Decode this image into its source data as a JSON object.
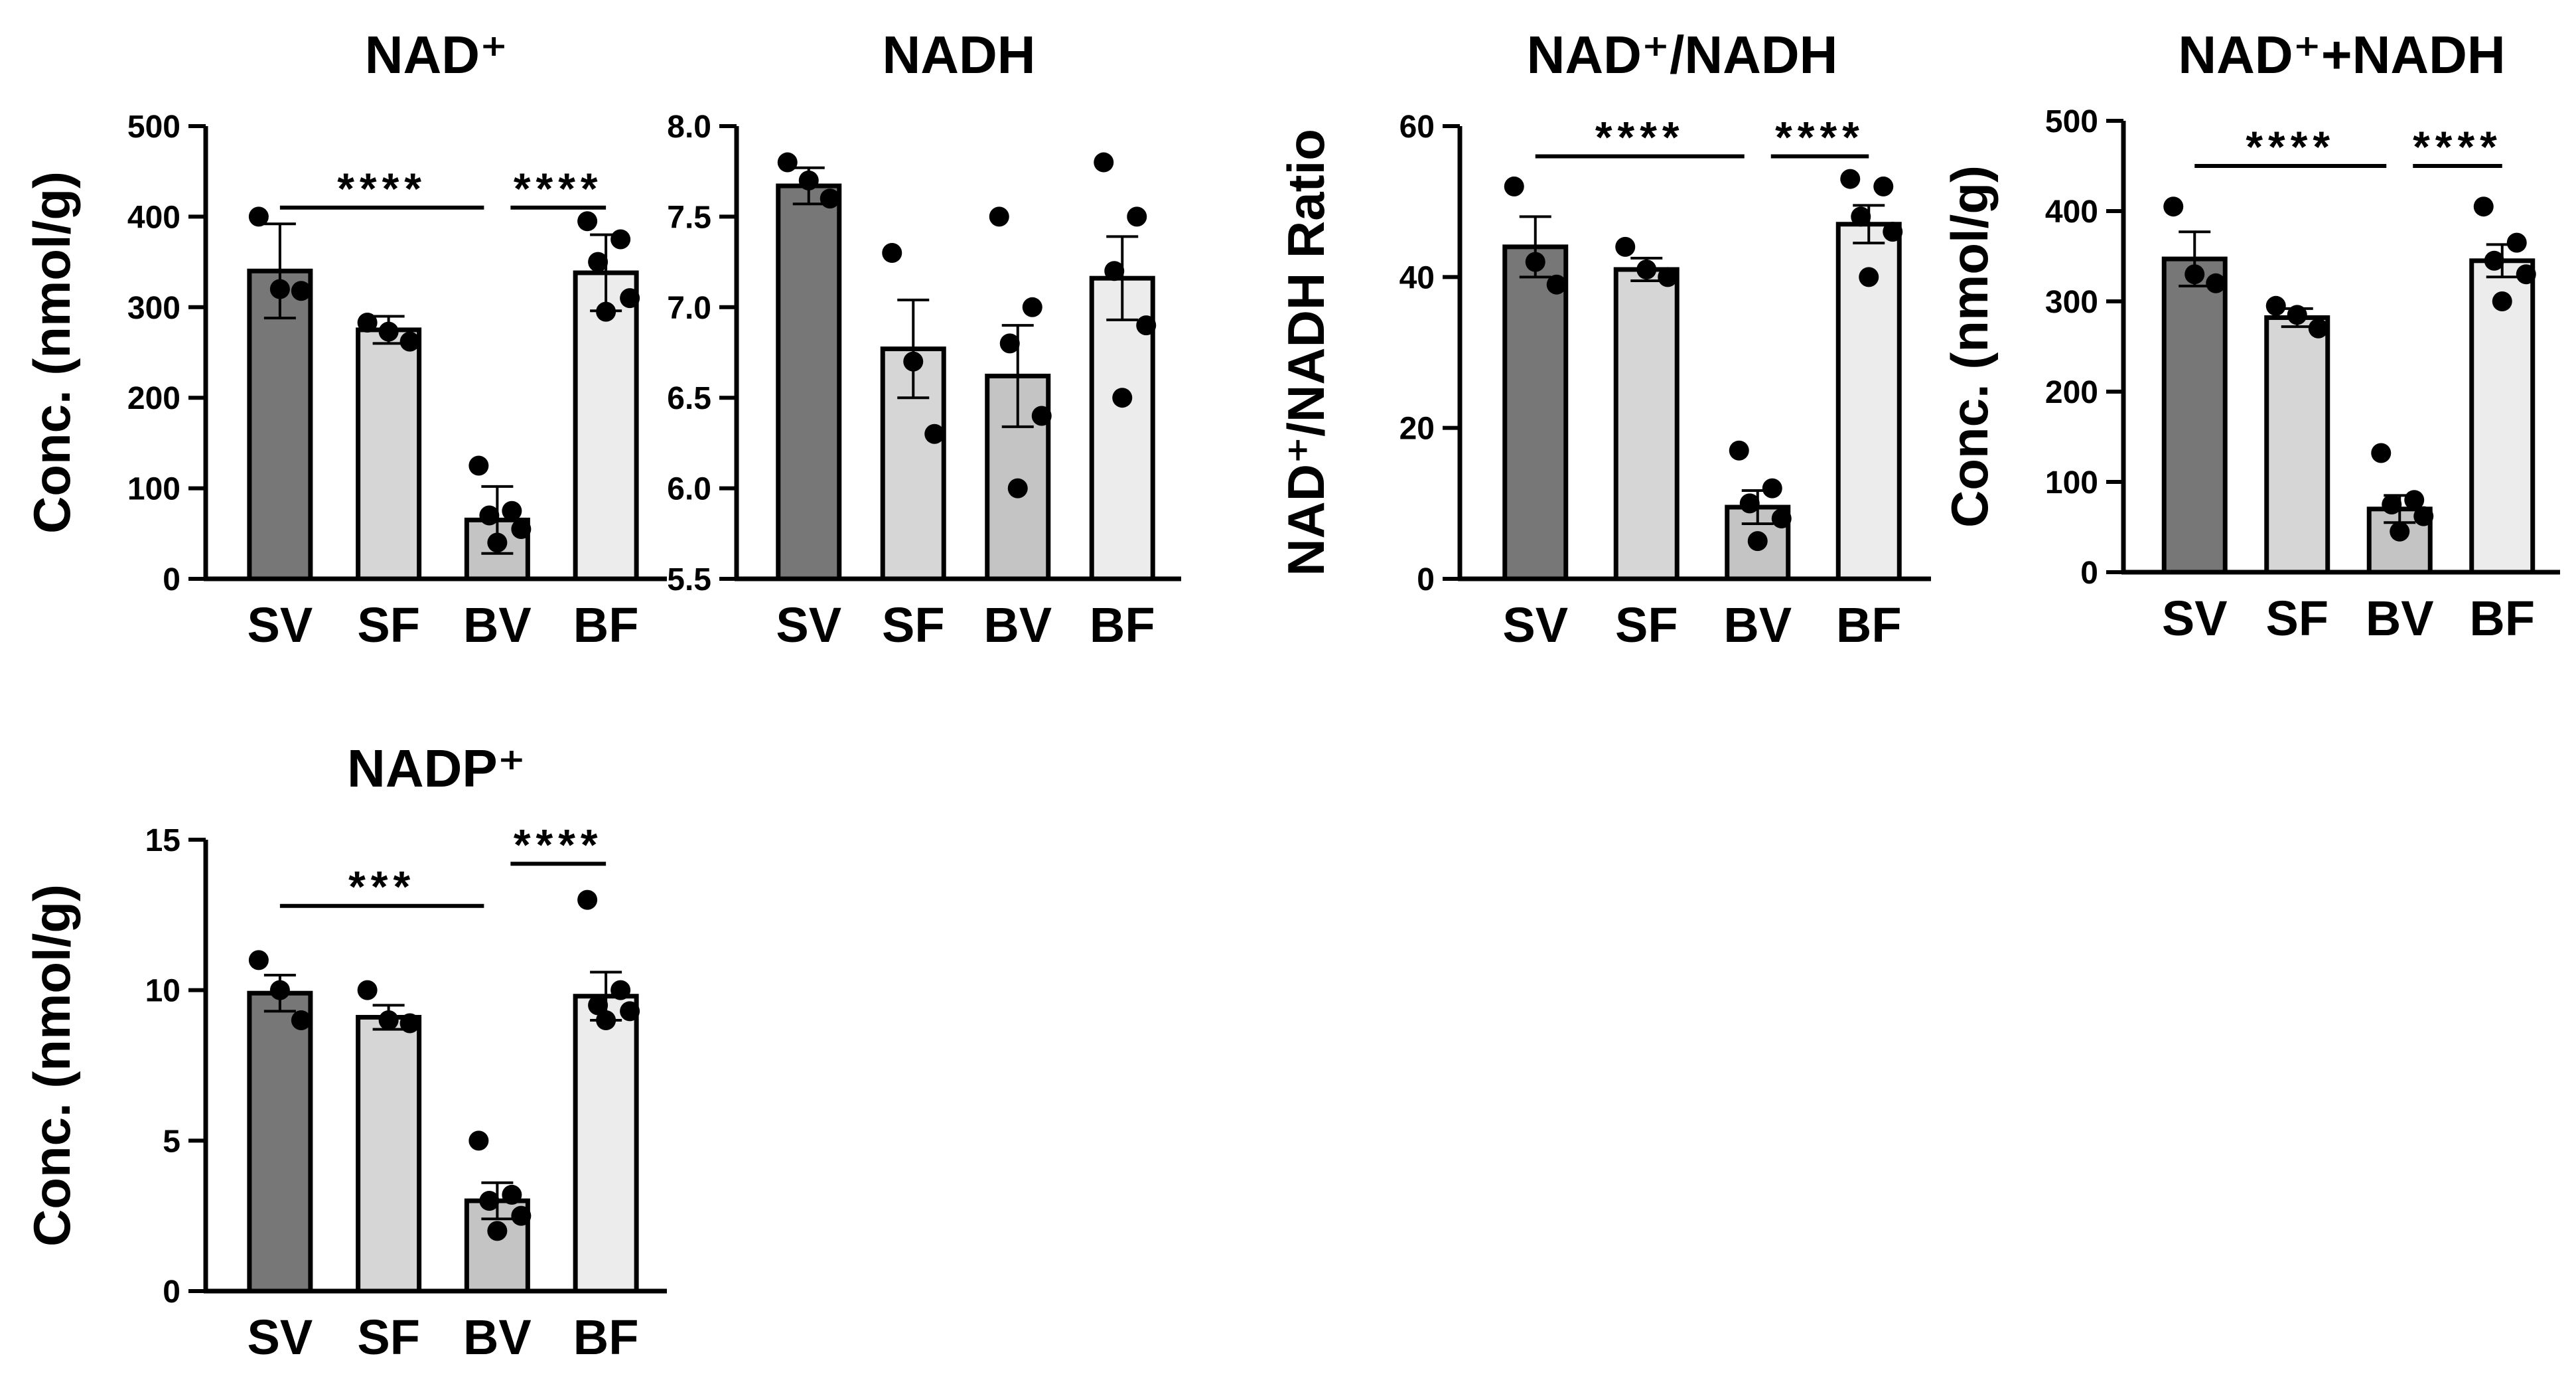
{
  "chart_data": [
    {
      "type": "bar",
      "title": "NAD⁺",
      "ylabel": "Conc. (nmol/g)",
      "categories": [
        "SV",
        "SF",
        "BV",
        "BF"
      ],
      "colors": [
        "#777777",
        "#d6d6d6",
        "#c4c4c4",
        "#ececec"
      ],
      "ylim": [
        0,
        500
      ],
      "yticks": [
        0,
        100,
        200,
        300,
        400,
        500
      ],
      "means": [
        340,
        275,
        65,
        338
      ],
      "sem": [
        52,
        15,
        37,
        42
      ],
      "points": [
        [
          400,
          320,
          318
        ],
        [
          283,
          273,
          262
        ],
        [
          125,
          75,
          70,
          55,
          40
        ],
        [
          395,
          375,
          350,
          310,
          295
        ]
      ],
      "significance": [
        {
          "from": "SV",
          "to": "BV",
          "label": "****",
          "y": 410
        },
        {
          "from": "BV",
          "to": "BF",
          "label": "****",
          "y": 410
        }
      ]
    },
    {
      "type": "bar",
      "title": "NADH",
      "ylabel": "",
      "categories": [
        "SV",
        "SF",
        "BV",
        "BF"
      ],
      "colors": [
        "#777777",
        "#d6d6d6",
        "#c4c4c4",
        "#ececec"
      ],
      "ylim": [
        5.5,
        8.0
      ],
      "yticks": [
        "5.5",
        "6.0",
        "6.5",
        "7.0",
        "7.5",
        "8.0"
      ],
      "means": [
        7.67,
        6.77,
        6.62,
        7.16
      ],
      "sem": [
        0.1,
        0.27,
        0.28,
        0.23
      ],
      "points": [
        [
          7.8,
          7.7,
          7.6
        ],
        [
          7.3,
          6.7,
          6.3
        ],
        [
          7.5,
          7.0,
          6.8,
          6.4,
          6.0
        ],
        [
          7.8,
          7.5,
          7.2,
          6.9,
          6.5
        ]
      ],
      "significance": []
    },
    {
      "type": "bar",
      "title": "NAD⁺/NADH",
      "ylabel": "NAD⁺/NADH Ratio",
      "categories": [
        "SV",
        "SF",
        "BV",
        "BF"
      ],
      "colors": [
        "#777777",
        "#d6d6d6",
        "#c4c4c4",
        "#ececec"
      ],
      "ylim": [
        0,
        60
      ],
      "yticks": [
        0,
        20,
        40,
        60
      ],
      "means": [
        44,
        41,
        9.5,
        47
      ],
      "sem": [
        4,
        1.5,
        2.2,
        2.5
      ],
      "points": [
        [
          52,
          42,
          39
        ],
        [
          44,
          41,
          40
        ],
        [
          17,
          12,
          10,
          8,
          5
        ],
        [
          53,
          52,
          48,
          46,
          40
        ]
      ],
      "significance": [
        {
          "from": "SV",
          "to": "BV",
          "label": "****",
          "y": 56
        },
        {
          "from": "BV",
          "to": "BF",
          "label": "****",
          "y": 56
        }
      ]
    },
    {
      "type": "bar",
      "title": "NAD⁺+NADH",
      "ylabel": "Conc. (nmol/g)",
      "categories": [
        "SV",
        "SF",
        "BV",
        "BF"
      ],
      "colors": [
        "#777777",
        "#d6d6d6",
        "#c4c4c4",
        "#ececec"
      ],
      "ylim": [
        0,
        500
      ],
      "yticks": [
        0,
        100,
        200,
        300,
        400,
        500
      ],
      "means": [
        347,
        282,
        70,
        345
      ],
      "sem": [
        30,
        10,
        15,
        18
      ],
      "points": [
        [
          405,
          330,
          320
        ],
        [
          295,
          285,
          270
        ],
        [
          132,
          80,
          75,
          62,
          45
        ],
        [
          405,
          365,
          345,
          330,
          300
        ]
      ],
      "significance": [
        {
          "from": "SV",
          "to": "BV",
          "label": "****",
          "y": 450
        },
        {
          "from": "BV",
          "to": "BF",
          "label": "****",
          "y": 450
        }
      ]
    },
    {
      "type": "bar",
      "title": "NADP⁺",
      "ylabel": "Conc. (nmol/g)",
      "categories": [
        "SV",
        "SF",
        "BV",
        "BF"
      ],
      "colors": [
        "#777777",
        "#d6d6d6",
        "#c4c4c4",
        "#ececec"
      ],
      "ylim": [
        0,
        15
      ],
      "yticks": [
        0,
        5,
        10,
        15
      ],
      "means": [
        9.9,
        9.1,
        3.0,
        9.8
      ],
      "sem": [
        0.6,
        0.4,
        0.6,
        0.8
      ],
      "points": [
        [
          11.0,
          10.0,
          9.0
        ],
        [
          10.0,
          9.0,
          8.9
        ],
        [
          5.0,
          3.2,
          3.0,
          2.5,
          2.0
        ],
        [
          13.0,
          10.0,
          9.5,
          9.3,
          9.0
        ]
      ],
      "significance": [
        {
          "from": "SV",
          "to": "BV",
          "label": "***",
          "y": 12.8
        },
        {
          "from": "BV",
          "to": "BF",
          "label": "****",
          "y": 14.2
        }
      ]
    }
  ]
}
